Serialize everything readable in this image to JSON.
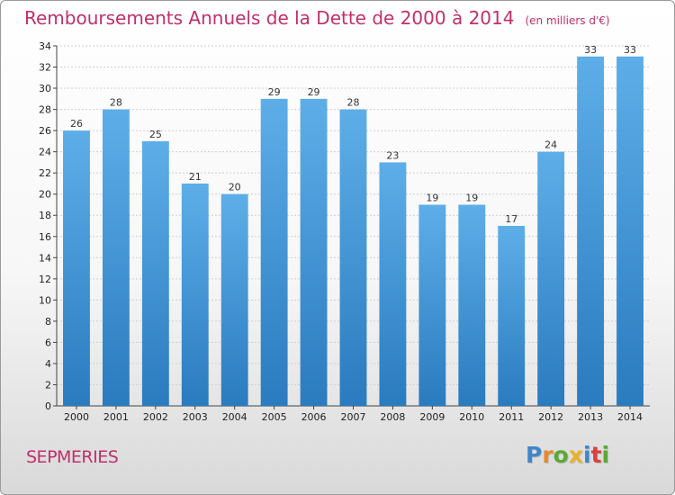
{
  "header": {
    "title": "Remboursements Annuels de la Dette de 2000 à 2014",
    "unit": "(en milliers d'€)"
  },
  "footer": {
    "place": "SEPMERIES",
    "logo": "Proxiti"
  },
  "logo_letters": [
    {
      "ch": "P",
      "color": "#3f86c8"
    },
    {
      "ch": "r",
      "color": "#e8892a"
    },
    {
      "ch": "o",
      "color": "#5aa935"
    },
    {
      "ch": "x",
      "color": "#e8b12a"
    },
    {
      "ch": "i",
      "color": "#3f86c8"
    },
    {
      "ch": "t",
      "color": "#d94040"
    },
    {
      "ch": "i",
      "color": "#5aa935"
    }
  ],
  "colors": {
    "title": "#c0306a",
    "bar_light": "#5daee8",
    "bar_dark": "#2a7bbf"
  },
  "chart_data": {
    "type": "bar",
    "categories": [
      "2000",
      "2001",
      "2002",
      "2003",
      "2004",
      "2005",
      "2006",
      "2007",
      "2008",
      "2009",
      "2010",
      "2011",
      "2012",
      "2013",
      "2014"
    ],
    "values": [
      26,
      28,
      25,
      21,
      20,
      29,
      29,
      28,
      23,
      19,
      19,
      17,
      24,
      33,
      33
    ],
    "ylim": [
      0,
      34
    ],
    "yticks": [
      0,
      2,
      4,
      6,
      8,
      10,
      12,
      14,
      16,
      18,
      20,
      22,
      24,
      26,
      28,
      30,
      32,
      34
    ],
    "grid": true
  }
}
